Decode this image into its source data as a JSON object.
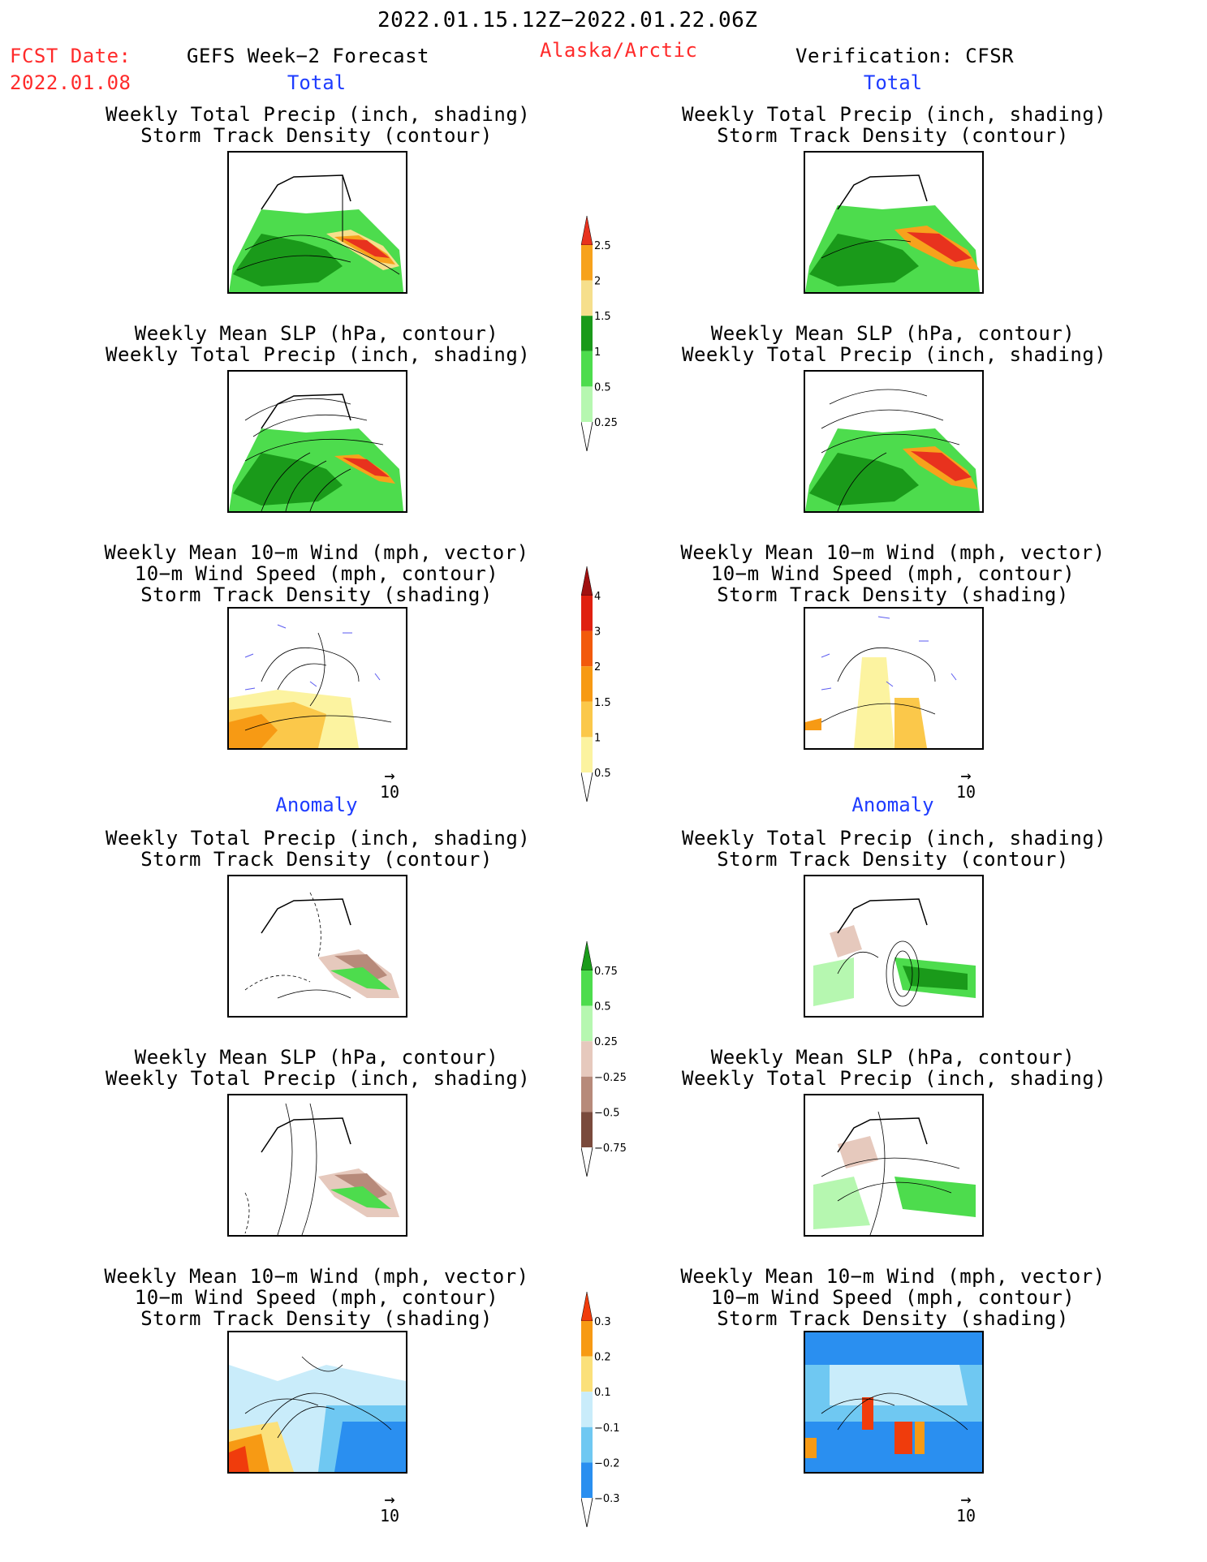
{
  "header": {
    "date_range": "2022.01.15.12Z−2022.01.22.06Z",
    "fcst_label": "FCST Date:",
    "fcst_date": "2022.01.08",
    "model": "GEFS Week−2 Forecast",
    "region": "Alaska/Arctic",
    "verification": "Verification: CFSR"
  },
  "sections": {
    "total": "Total",
    "anomaly": "Anomaly"
  },
  "titles": {
    "precip_track": "Weekly Total Precip (inch, shading)\nStorm Track Density (contour)",
    "slp_precip": "Weekly Mean SLP (hPa, contour)\nWeekly Total Precip (inch, shading)",
    "wind_track": "Weekly Mean 10−m Wind (mph, vector)\n10−m Wind Speed (mph, contour)\nStorm Track Density (shading)"
  },
  "reference_vector": "10",
  "colorbars": {
    "precip_total": {
      "labels": [
        "2.5",
        "2",
        "1.5",
        "1",
        "0.5",
        "0.25"
      ],
      "colors": [
        "#e8321e",
        "#f7a21c",
        "#f6df8c",
        "#1a9a1a",
        "#4ddc4d",
        "#b6f7b0"
      ]
    },
    "track_total": {
      "labels": [
        "4",
        "3",
        "2",
        "1.5",
        "1",
        "0.5"
      ],
      "colors": [
        "#a01010",
        "#e02010",
        "#f25a0c",
        "#f79a14",
        "#fbc84a",
        "#fcf3a0"
      ]
    },
    "precip_anom": {
      "labels": [
        "0.75",
        "0.5",
        "0.25",
        "−0.25",
        "−0.5",
        "−0.75"
      ],
      "colors": [
        "#1a9a1a",
        "#4ddc4d",
        "#b6f7b0",
        "#e6c9bd",
        "#b78a7a",
        "#7a4a3c"
      ]
    },
    "track_anom": {
      "labels": [
        "0.3",
        "0.2",
        "0.1",
        "−0.1",
        "−0.2",
        "−0.3"
      ],
      "colors": [
        "#f03c0c",
        "#f79a14",
        "#fbe07a",
        "#c9ecfa",
        "#6fc8f2",
        "#2a8ff0"
      ]
    }
  }
}
